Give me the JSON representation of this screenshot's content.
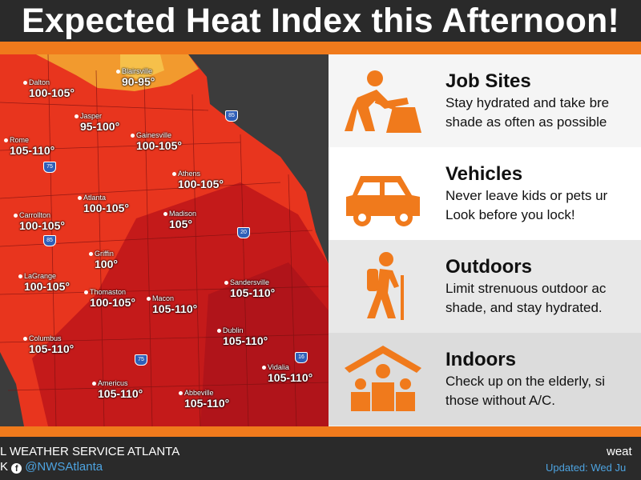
{
  "header": {
    "title": "Expected Heat Index this Afternoon!"
  },
  "colors": {
    "accent": "#f07a1c",
    "heat_extreme": "#c41a1a",
    "heat_high": "#e8351e",
    "heat_moderate": "#f29a2e",
    "link": "#4da3e0"
  },
  "map": {
    "cities": [
      {
        "name": "Blairsville",
        "value": "90-95°"
      },
      {
        "name": "Dalton",
        "value": "100-105°"
      },
      {
        "name": "Jasper",
        "value": "95-100°"
      },
      {
        "name": "Gainesville",
        "value": "100-105°"
      },
      {
        "name": "Rome",
        "value": "105-110°"
      },
      {
        "name": "Athens",
        "value": "100-105°"
      },
      {
        "name": "Atlanta",
        "value": "100-105°"
      },
      {
        "name": "Carrollton",
        "value": "100-105°"
      },
      {
        "name": "Madison",
        "value": "105°"
      },
      {
        "name": "Griffin",
        "value": "100°"
      },
      {
        "name": "LaGrange",
        "value": "100-105°"
      },
      {
        "name": "Thomaston",
        "value": "100-105°"
      },
      {
        "name": "Macon",
        "value": "105-110°"
      },
      {
        "name": "Sandersville",
        "value": "105-110°"
      },
      {
        "name": "Columbus",
        "value": "105-110°"
      },
      {
        "name": "Dublin",
        "value": "105-110°"
      },
      {
        "name": "Vidalia",
        "value": "105-110°"
      },
      {
        "name": "Americus",
        "value": "105-110°"
      },
      {
        "name": "Abbeville",
        "value": "105-110°"
      }
    ],
    "highways": [
      "85",
      "75",
      "85",
      "20",
      "75",
      "16"
    ]
  },
  "tips": [
    {
      "icon": "shovel-worker-icon",
      "title": "Job Sites",
      "line1": "Stay hydrated and take bre",
      "line2": "shade as often as possible"
    },
    {
      "icon": "car-icon",
      "title": "Vehicles",
      "line1": "Never leave kids or pets ur",
      "line2": "Look before you lock!"
    },
    {
      "icon": "hiker-icon",
      "title": "Outdoors",
      "line1": "Limit strenuous outdoor ac",
      "line2": "shade, and stay hydrated."
    },
    {
      "icon": "family-shelter-icon",
      "title": "Indoors",
      "line1": "Check up on the elderly, si",
      "line2": "those without A/C."
    }
  ],
  "footer": {
    "org": "L WEATHER SERVICE ATLANTA",
    "social_prefix": "K",
    "facebook_glyph": "f",
    "handle": "@NWSAtlanta",
    "web": "weat",
    "updated": "Updated: Wed Ju"
  }
}
